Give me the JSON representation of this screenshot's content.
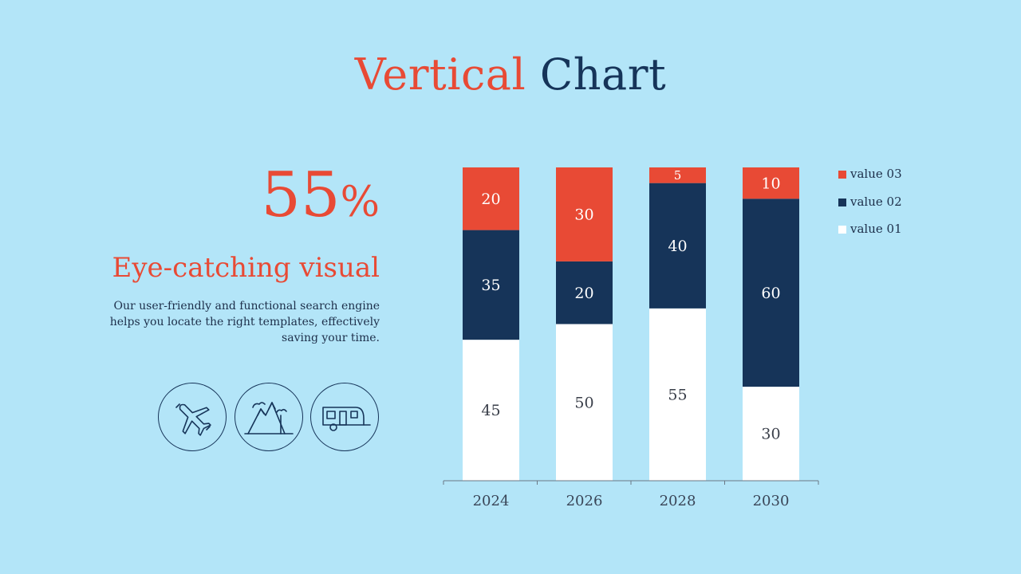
{
  "slide": {
    "title_part1": "Vertical",
    "title_part2": "Chart",
    "big_number": "55",
    "big_number_suffix": "%",
    "heading": "Eye-catching visual",
    "description": "Our user-friendly and functional search engine helps you locate the right templates, effectively saving your time.",
    "icons": [
      "airplane-icon",
      "mountain-icon",
      "caravan-icon"
    ]
  },
  "colors": {
    "background": "#b3e5f8",
    "accent_red": "#e84a35",
    "navy": "#163459",
    "white": "#ffffff"
  },
  "chart_data": {
    "type": "bar",
    "stacked": true,
    "categories": [
      "2024",
      "2026",
      "2028",
      "2030"
    ],
    "series": [
      {
        "name": "value 01",
        "values": [
          45,
          50,
          55,
          30
        ],
        "color": "#ffffff",
        "label_color": "#3a3f4a"
      },
      {
        "name": "value 02",
        "values": [
          35,
          20,
          40,
          60
        ],
        "color": "#163459",
        "label_color": "#ffffff"
      },
      {
        "name": "value 03",
        "values": [
          20,
          30,
          5,
          10
        ],
        "color": "#e84a35",
        "label_color": "#ffffff"
      }
    ],
    "legend_order": [
      "value 03",
      "value 02",
      "value 01"
    ],
    "legend_position": "right",
    "title": "",
    "xlabel": "",
    "ylabel": "",
    "grid": false
  }
}
